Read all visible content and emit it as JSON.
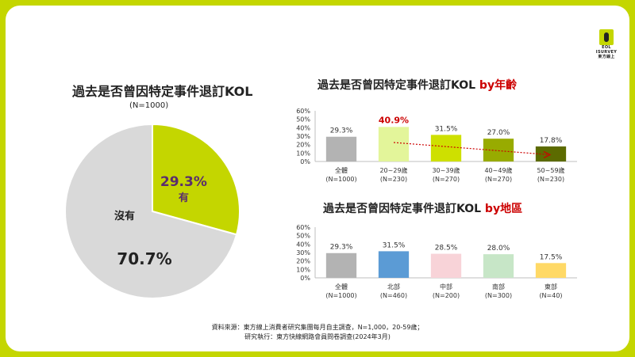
{
  "logo": {
    "line1": "EOL",
    "line2": "ISURVEY",
    "line3": "東方線上"
  },
  "pie_panel": {
    "title": "過去是否曾因特定事件退訂KOL",
    "n_label": "(N=1000)"
  },
  "age_panel": {
    "title_main": "過去是否曾因特定事件退訂KOL ",
    "title_accent": "by年齡"
  },
  "region_panel": {
    "title_main": "過去是否曾因特定事件退訂KOL ",
    "title_accent": "by地區"
  },
  "footer": {
    "line1": "資料來源：東方線上消費者研究集團每月自主調查，N=1,000，20-59歲；",
    "line2": "研究執行：東方快線網路會員問卷調查(2024年3月)"
  },
  "colors": {
    "slide_border": "#c4d600",
    "accent_red": "#cc0000",
    "pie_yes": "#c4d600",
    "pie_no": "#d9d9d9"
  },
  "chart_data": [
    {
      "type": "pie",
      "slices": [
        {
          "label": "有",
          "value": 29.3,
          "value_label": "29.3%",
          "color": "#c4d600"
        },
        {
          "label": "沒有",
          "value": 70.7,
          "value_label": "70.7%",
          "color": "#d9d9d9"
        }
      ]
    },
    {
      "type": "bar",
      "categories": [
        "全體",
        "20~29歲",
        "30~39歲",
        "40~49歲",
        "50~59歲"
      ],
      "sublabels": [
        "(N=1000)",
        "(N=230)",
        "(N=270)",
        "(N=270)",
        "(N=230)"
      ],
      "values": [
        29.3,
        40.9,
        31.5,
        27.0,
        17.8
      ],
      "value_labels": [
        "29.3%",
        "40.9%",
        "31.5%",
        "27.0%",
        "17.8%"
      ],
      "highlight_index": 1,
      "colors": [
        "#b3b3b3",
        "#e3f59a",
        "#cee000",
        "#98ab00",
        "#5c6b00"
      ],
      "yticks": [
        "0%",
        "10%",
        "20%",
        "30%",
        "40%",
        "50%",
        "60%"
      ],
      "ylim": [
        0,
        60
      ],
      "trend": "decreasing (dotted red arrow)"
    },
    {
      "type": "bar",
      "categories": [
        "全體",
        "北部",
        "中部",
        "南部",
        "東部"
      ],
      "sublabels": [
        "(N=1000)",
        "(N=460)",
        "(N=200)",
        "(N=300)",
        "(N=40)"
      ],
      "values": [
        29.3,
        31.5,
        28.5,
        28.0,
        17.5
      ],
      "value_labels": [
        "29.3%",
        "31.5%",
        "28.5%",
        "28.0%",
        "17.5%"
      ],
      "colors": [
        "#b3b3b3",
        "#5b9bd5",
        "#f8d3d8",
        "#c7e6c7",
        "#ffd966"
      ],
      "yticks": [
        "0%",
        "10%",
        "20%",
        "30%",
        "40%",
        "50%",
        "60%"
      ],
      "ylim": [
        0,
        60
      ]
    }
  ]
}
